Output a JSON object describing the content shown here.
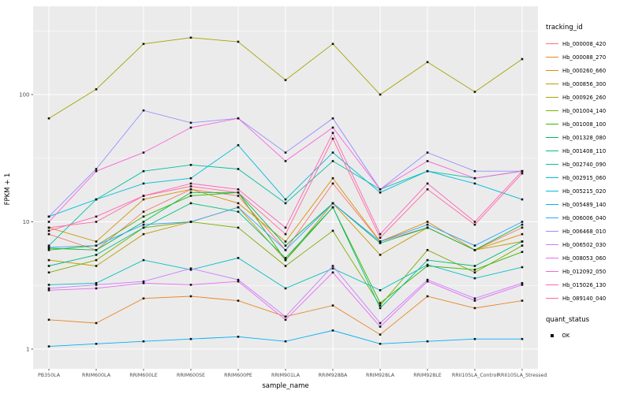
{
  "chart_data": {
    "type": "line",
    "title": "",
    "xlabel": "sample_name",
    "ylabel": "FPKM + 1",
    "yscale": "log10",
    "yticks": [
      1,
      10,
      100
    ],
    "ytick_labels": [
      "1",
      "10",
      "100"
    ],
    "ylim": [
      0.7,
      500
    ],
    "grid": true,
    "panel_bg": "#EBEBEB",
    "grid_color": "#FFFFFF",
    "point_marker": "square",
    "point_color": "#111111",
    "legend_position": "right",
    "legend_titles": {
      "color": "tracking_id",
      "shape": "quant_status"
    },
    "shape_legend": {
      "label": "OK",
      "marker": "square"
    },
    "x": [
      "PB350LA",
      "RRIM600LA",
      "RRIM600LE",
      "RRIM600SE",
      "RRIM600PE",
      "RRIM901LA",
      "RRIM928BA",
      "RRIM928LA",
      "RRIM928LE",
      "RRII105LA_Control",
      "RRII105LA_Stressed"
    ],
    "series": [
      {
        "name": "Hb_000008_420",
        "color": "#F8766D",
        "values": [
          8,
          6,
          12,
          18,
          16,
          6,
          20,
          7,
          9,
          6,
          9
        ]
      },
      {
        "name": "Hb_000088_270",
        "color": "#E88526",
        "values": [
          1.7,
          1.6,
          2.5,
          2.6,
          2.4,
          1.8,
          2.2,
          1.3,
          2.6,
          2.1,
          2.4
        ]
      },
      {
        "name": "Hb_000260_660",
        "color": "#D89000",
        "values": [
          9,
          7,
          15,
          18,
          14,
          7,
          22,
          7,
          10,
          6,
          8
        ]
      },
      {
        "name": "Hb_000856_300",
        "color": "#C09B00",
        "values": [
          5,
          4.5,
          8,
          10,
          13,
          5,
          14,
          5.5,
          9,
          6,
          7
        ]
      },
      {
        "name": "Hb_000926_260",
        "color": "#A3A500",
        "values": [
          65,
          110,
          250,
          280,
          260,
          130,
          250,
          100,
          180,
          105,
          190
        ]
      },
      {
        "name": "Hb_001004_140",
        "color": "#7CAE00",
        "values": [
          4,
          5,
          9,
          10,
          9,
          4.5,
          8.5,
          2.2,
          6,
          4,
          6.5
        ]
      },
      {
        "name": "Hb_001008_100",
        "color": "#39B600",
        "values": [
          6,
          6.5,
          11,
          16,
          17,
          5,
          13,
          2.3,
          4.5,
          4.2,
          5.8
        ]
      },
      {
        "name": "Hb_001328_080",
        "color": "#00BB4E",
        "values": [
          6.2,
          6,
          10,
          17,
          17,
          6.5,
          14,
          6.8,
          9,
          6,
          9.5
        ]
      },
      {
        "name": "Hb_001408_110",
        "color": "#00BF7D",
        "values": [
          4.5,
          5.5,
          9,
          14,
          12,
          5.2,
          13,
          2.1,
          5,
          4.5,
          7
        ]
      },
      {
        "name": "Hb_002740_090",
        "color": "#00C1A3",
        "values": [
          6.5,
          15,
          25,
          28,
          26,
          14,
          30,
          18,
          25,
          22,
          25
        ]
      },
      {
        "name": "Hb_002915_060",
        "color": "#00BFC4",
        "values": [
          3.2,
          3.3,
          5,
          4.2,
          5.2,
          3,
          4.3,
          2.9,
          4.6,
          3.6,
          4.4
        ]
      },
      {
        "name": "Hb_005215_020",
        "color": "#00BAE0",
        "values": [
          11,
          15,
          20,
          22,
          40,
          15,
          35,
          17,
          25,
          20,
          15
        ]
      },
      {
        "name": "Hb_005489_140",
        "color": "#00B0F6",
        "values": [
          1.05,
          1.1,
          1.15,
          1.2,
          1.25,
          1.15,
          1.4,
          1.1,
          1.15,
          1.2,
          1.2
        ]
      },
      {
        "name": "Hb_006006_040",
        "color": "#35A2FF",
        "values": [
          6.3,
          6.5,
          9.5,
          10,
          13,
          6,
          14,
          7,
          9.5,
          6.5,
          10
        ]
      },
      {
        "name": "Hb_006468_010",
        "color": "#9590FF",
        "values": [
          11,
          26,
          75,
          60,
          65,
          35,
          65,
          18,
          35,
          25,
          25
        ]
      },
      {
        "name": "Hb_006502_030",
        "color": "#C77CFF",
        "values": [
          3,
          3.2,
          3.4,
          4.3,
          3.5,
          1.8,
          4.5,
          1.6,
          3.5,
          2.5,
          3.3
        ]
      },
      {
        "name": "Hb_008053_060",
        "color": "#E76BF3",
        "values": [
          2.9,
          3,
          3.3,
          3.2,
          3.4,
          1.7,
          4,
          1.5,
          3.4,
          2.4,
          3.2
        ]
      },
      {
        "name": "Hb_012092_050",
        "color": "#FA62DB",
        "values": [
          10,
          25,
          35,
          55,
          65,
          30,
          55,
          18,
          30,
          22,
          25
        ]
      },
      {
        "name": "Hb_015026_130",
        "color": "#FF62BC",
        "values": [
          8.5,
          11,
          16,
          20,
          18,
          9,
          50,
          8,
          20,
          10,
          25
        ]
      },
      {
        "name": "Hb_089140_040",
        "color": "#FF6A98",
        "values": [
          9,
          10,
          16,
          19,
          17,
          8,
          45,
          7.5,
          18,
          9.5,
          24
        ]
      }
    ]
  }
}
